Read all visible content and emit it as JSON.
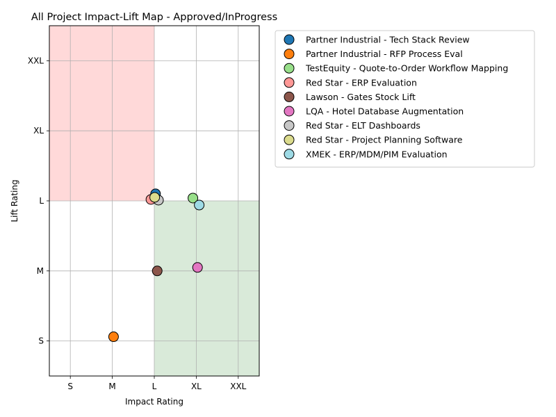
{
  "chart_data": {
    "type": "scatter",
    "title": "All Project Impact-Lift Map - Approved/InProgress",
    "xlabel": "Impact Rating",
    "ylabel": "Lift Rating",
    "x_ticks": [
      "S",
      "M",
      "L",
      "XL",
      "XXL"
    ],
    "y_ticks": [
      "S",
      "M",
      "L",
      "XL",
      "XXL"
    ],
    "xlim": [
      -0.5,
      4.5
    ],
    "ylim": [
      -0.5,
      4.5
    ],
    "grid": true,
    "legend_position": "outside-top-right",
    "regions": [
      {
        "x": [
          -0.5,
          2
        ],
        "y": [
          2,
          4.5
        ],
        "color": "#ffd9d9"
      },
      {
        "x": [
          2,
          4.5
        ],
        "y": [
          -0.5,
          2
        ],
        "color": "#d9ead9"
      }
    ],
    "series": [
      {
        "name": "Partner Industrial - Tech Stack Review",
        "color": "#1f77b4",
        "x": 2.03,
        "y": 2.1
      },
      {
        "name": "Partner Industrial - RFP Process Eval",
        "color": "#ff7f0e",
        "x": 1.03,
        "y": 0.06
      },
      {
        "name": "TestEquity - Quote-to-Order Workflow Mapping",
        "color": "#98df8a",
        "x": 2.92,
        "y": 2.04
      },
      {
        "name": "Red Star - ERP Evaluation",
        "color": "#ff9896",
        "x": 1.92,
        "y": 2.02
      },
      {
        "name": "Lawson - Gates Stock Lift",
        "color": "#8c564b",
        "x": 2.07,
        "y": 1.0
      },
      {
        "name": "LQA - Hotel Database Augmentation",
        "color": "#e377c2",
        "x": 3.03,
        "y": 1.05
      },
      {
        "name": "Red Star - ELT Dashboards",
        "color": "#c7c7c7",
        "x": 2.1,
        "y": 2.01
      },
      {
        "name": "Red Star - Project Planning Software",
        "color": "#dbdb8d",
        "x": 2.01,
        "y": 2.05
      },
      {
        "name": "XMEK - ERP/MDM/PIM Evaluation",
        "color": "#9edae5",
        "x": 3.07,
        "y": 1.94
      }
    ]
  }
}
